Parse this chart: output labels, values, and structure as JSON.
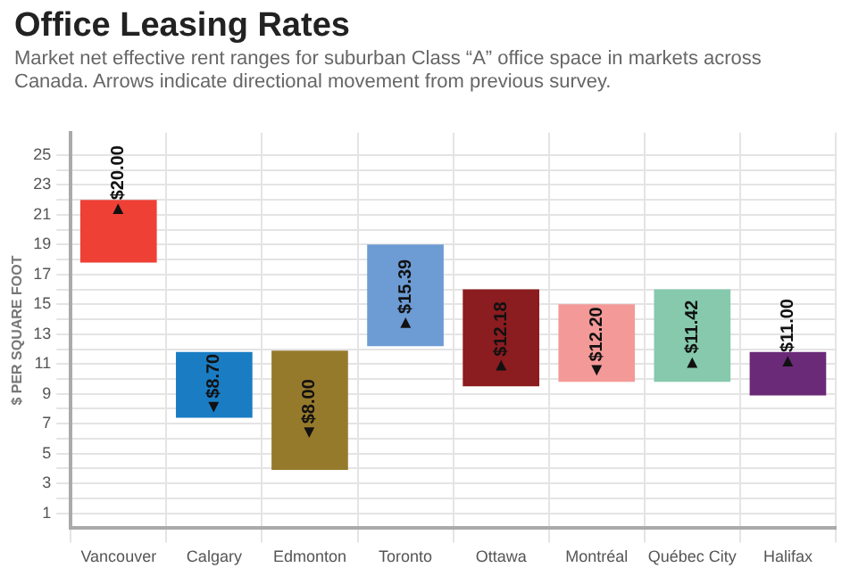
{
  "chart_data": {
    "type": "bar",
    "title": "Office Leasing Rates",
    "subtitle": "Market net effective rent ranges for suburban Class “A” office space in markets across Canada. Arrows indicate directional movement from previous survey.",
    "ylabel": "$ PER SQUARE FOOT",
    "categories": [
      "Vancouver",
      "Calgary",
      "Edmonton",
      "Toronto",
      "Ottawa",
      "Montréal",
      "Québec City",
      "Halifax"
    ],
    "base": [
      17.8,
      7.4,
      3.9,
      12.2,
      9.5,
      9.8,
      9.8,
      8.9
    ],
    "values": [
      4.2,
      4.4,
      8.0,
      6.8,
      6.5,
      5.2,
      6.2,
      2.9
    ],
    "colors": [
      "#ee4035",
      "#1a7dc4",
      "#967a2c",
      "#6d9bd4",
      "#8b1c1f",
      "#f39a98",
      "#86c9ad",
      "#6a2a78"
    ],
    "annotations": [
      "►$20.00",
      "◄$8.70",
      "◄$8.00",
      "►$15.39",
      "►$12.18",
      "◄$12.20",
      "►$11.42",
      "►$11.00"
    ],
    "ylim": [
      0,
      26.5
    ],
    "yticks": [
      1,
      {
        "value": 2,
        "label": null
      },
      3,
      {
        "value": 4,
        "label": null
      },
      5,
      {
        "value": 6,
        "label": null
      },
      7,
      {
        "value": 8,
        "label": null
      },
      9,
      {
        "value": 10,
        "label": null
      },
      11,
      {
        "value": 12,
        "label": null
      },
      13,
      {
        "value": 14,
        "label": null
      },
      15,
      {
        "value": 16,
        "label": null
      },
      17,
      {
        "value": 18,
        "label": null
      },
      19,
      {
        "value": 20,
        "label": null
      },
      21,
      {
        "value": 22,
        "label": null
      },
      23,
      {
        "value": 24,
        "label": null
      },
      25
    ],
    "grid": true,
    "legend": false
  }
}
